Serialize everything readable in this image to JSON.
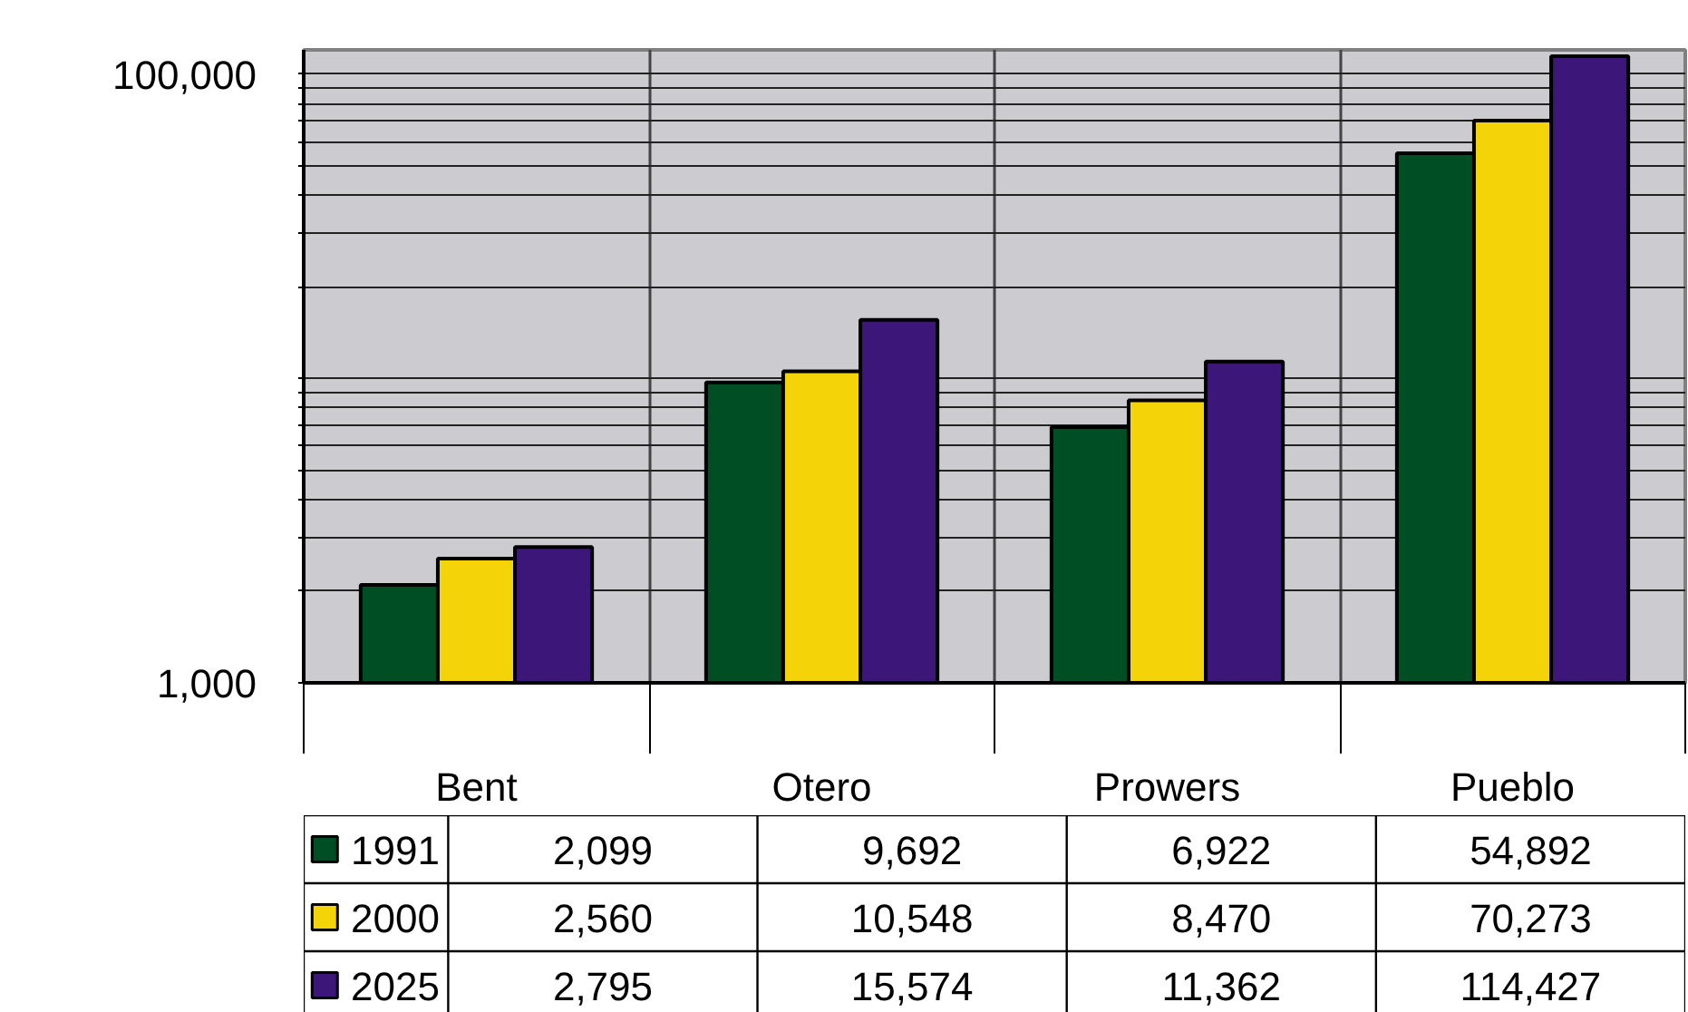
{
  "chart_data": {
    "type": "bar",
    "categories": [
      "Bent",
      "Otero",
      "Prowers",
      "Pueblo"
    ],
    "series": [
      {
        "name": "1991",
        "color": "#004f24",
        "values": [
          2099,
          9692,
          6922,
          54892
        ],
        "value_labels": [
          "2,099",
          "9,692",
          "6,922",
          "54,892"
        ]
      },
      {
        "name": "2000",
        "color": "#f4d308",
        "values": [
          2560,
          10548,
          8470,
          70273
        ],
        "value_labels": [
          "2,560",
          "10,548",
          "8,470",
          "70,273"
        ]
      },
      {
        "name": "2025",
        "color": "#3c1678",
        "values": [
          2795,
          15574,
          11362,
          114427
        ],
        "value_labels": [
          "2,795",
          "15,574",
          "11,362",
          "114,427"
        ]
      }
    ],
    "log": true,
    "ylim": [
      1000,
      120000
    ],
    "yticks": [
      {
        "value": 1000,
        "label": "1,000"
      },
      {
        "value": 2000,
        "label": null
      },
      {
        "value": 3000,
        "label": null
      },
      {
        "value": 4000,
        "label": null
      },
      {
        "value": 5000,
        "label": null
      },
      {
        "value": 6000,
        "label": null
      },
      {
        "value": 7000,
        "label": null
      },
      {
        "value": 8000,
        "label": null
      },
      {
        "value": 9000,
        "label": null
      },
      {
        "value": 10000,
        "label": null
      },
      {
        "value": 20000,
        "label": null
      },
      {
        "value": 30000,
        "label": null
      },
      {
        "value": 40000,
        "label": null
      },
      {
        "value": 50000,
        "label": null
      },
      {
        "value": 60000,
        "label": null
      },
      {
        "value": 70000,
        "label": null
      },
      {
        "value": 80000,
        "label": null
      },
      {
        "value": 90000,
        "label": null
      },
      {
        "value": 100000,
        "label": "100,000"
      }
    ],
    "grid": true,
    "legend": "bottom left"
  }
}
